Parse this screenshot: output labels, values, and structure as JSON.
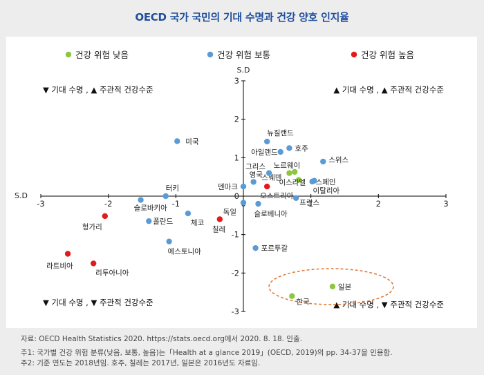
{
  "page": {
    "title": "OECD 국가 국민의 기대 수명과 건강 양호 인지율"
  },
  "footer": {
    "source": "자료: OECD Health Statistics 2020. https://stats.oecd.org에서 2020. 8. 18. 인출.",
    "note1": "주1: 국가별 건강 위험 분류(낮음, 보통, 높음)는「Health at a glance 2019」(OECD, 2019)의 pp. 34-37을 인용함.",
    "note2": "주2: 기준 연도는 2018년임. 호주, 칠레는 2017년, 일본은 2016년도 자료임."
  },
  "chart_data": {
    "type": "scatter",
    "title": "OECD 국가 국민의 기대 수명과 건강 양호 인지율",
    "xlabel": "S.D",
    "ylabel": "S.D",
    "xlim": [
      -3,
      3
    ],
    "ylim": [
      -3,
      3
    ],
    "xticks": [
      "-3",
      "-2",
      "-1",
      "0",
      "1",
      "2",
      "3"
    ],
    "yticks": [
      "3",
      "2",
      "1",
      "0",
      "-1",
      "-2",
      "-3"
    ],
    "legend_position": "top",
    "quadrant_labels": {
      "top_left": "▼ 기대 수명 , ▲ 주관적 건강수준",
      "top_right": "▲ 기대 수명 , ▲ 주관적 건강수준",
      "bottom_left": "▼ 기대 수명 , ▼ 주관적 건강수준",
      "bottom_right": "▲ 기대 수명 , ▼ 주관적 건강수준"
    },
    "highlight": "일본, 한국",
    "series": [
      {
        "name": "건강 위험 낮음",
        "color": "#8dc63f",
        "points": [
          {
            "label": "스웨덴",
            "x": 0.68,
            "y": 0.6
          },
          {
            "label": "노르웨이",
            "x": 0.76,
            "y": 0.63
          },
          {
            "label": "이스라엘",
            "x": 0.82,
            "y": 0.42
          },
          {
            "label": "일본",
            "x": 1.32,
            "y": -2.35
          },
          {
            "label": "한국",
            "x": 0.72,
            "y": -2.6
          }
        ]
      },
      {
        "name": "건강 위험 보통",
        "color": "#5b9bd5",
        "points": [
          {
            "label": "미국",
            "x": -0.98,
            "y": 1.43
          },
          {
            "label": "뉴질랜드",
            "x": 0.35,
            "y": 1.42
          },
          {
            "label": "호주",
            "x": 0.68,
            "y": 1.25
          },
          {
            "label": "아일랜드",
            "x": 0.55,
            "y": 1.15
          },
          {
            "label": "스위스",
            "x": 1.18,
            "y": 0.9
          },
          {
            "label": "그리스",
            "x": 0.38,
            "y": 0.6
          },
          {
            "label": "영국",
            "x": 0.15,
            "y": 0.37
          },
          {
            "label": "스페인",
            "x": 1.02,
            "y": 0.38
          },
          {
            "label": "이탈리아",
            "x": 1.05,
            "y": 0.4
          },
          {
            "label": "덴마크",
            "x": 0.0,
            "y": 0.25
          },
          {
            "label": "터키",
            "x": -1.15,
            "y": 0.0
          },
          {
            "label": "슬로바키아",
            "x": -1.52,
            "y": -0.1
          },
          {
            "label": "프랑스",
            "x": 0.78,
            "y": -0.05
          },
          {
            "label": "독일",
            "x": 0.0,
            "y": -0.17
          },
          {
            "label": "슬로베니아",
            "x": 0.22,
            "y": -0.2
          },
          {
            "label": "폴란드",
            "x": -1.4,
            "y": -0.65
          },
          {
            "label": "체코",
            "x": -0.82,
            "y": -0.45
          },
          {
            "label": "에스토니아",
            "x": -1.1,
            "y": -1.18
          },
          {
            "label": "포르투갈",
            "x": 0.18,
            "y": -1.35
          }
        ]
      },
      {
        "name": "건강 위험 높음",
        "color": "#e31a1c",
        "points": [
          {
            "label": "오스트리아",
            "x": 0.35,
            "y": 0.25
          },
          {
            "label": "칠레",
            "x": -0.35,
            "y": -0.6
          },
          {
            "label": "헝가리",
            "x": -2.05,
            "y": -0.52
          },
          {
            "label": "라트비아",
            "x": -2.6,
            "y": -1.5
          },
          {
            "label": "리투아니아",
            "x": -2.22,
            "y": -1.75
          }
        ]
      }
    ]
  }
}
